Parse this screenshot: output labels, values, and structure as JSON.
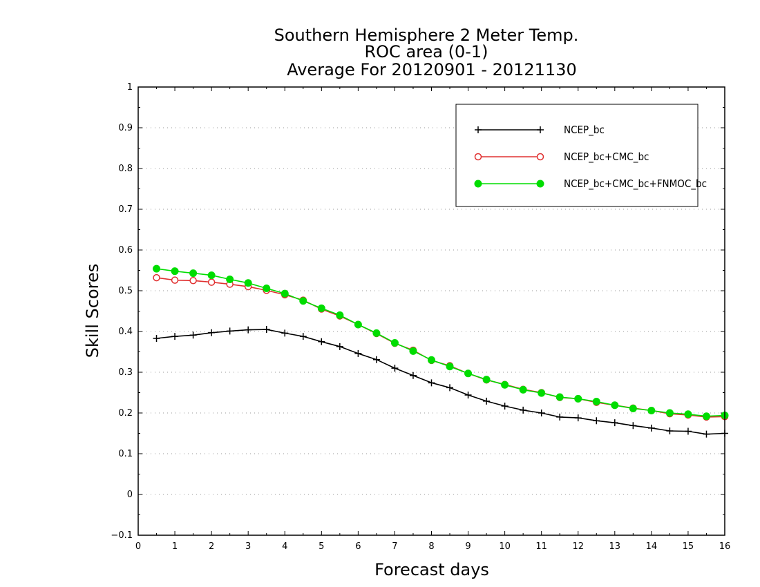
{
  "chart_data": {
    "type": "line",
    "title_lines": [
      "Southern Hemisphere 2 Meter Temp.",
      "ROC area (0-1)",
      "Average For 20120901 - 20121130"
    ],
    "xlabel": "Forecast days",
    "ylabel": "Skill Scores",
    "xlim": [
      0,
      16
    ],
    "ylim": [
      -0.1,
      1
    ],
    "xticks": [
      "0",
      "1",
      "2",
      "3",
      "4",
      "5",
      "6",
      "7",
      "8",
      "9",
      "10",
      "11",
      "12",
      "13",
      "14",
      "15",
      "16"
    ],
    "yticks": [
      "−0.1",
      "0",
      "0.1",
      "0.2",
      "0.3",
      "0.4",
      "0.5",
      "0.6",
      "0.7",
      "0.8",
      "0.9",
      "1"
    ],
    "grid": "horizontal dotted",
    "legend_position": "top-right",
    "x": [
      0.5,
      1,
      1.5,
      2,
      2.5,
      3,
      3.5,
      4,
      4.5,
      5,
      5.5,
      6,
      6.5,
      7,
      7.5,
      8,
      8.5,
      9,
      9.5,
      10,
      10.5,
      11,
      11.5,
      12,
      12.5,
      13,
      13.5,
      14,
      14.5,
      15,
      15.5,
      16
    ],
    "series": [
      {
        "name": "NCEP_bc",
        "color": "#000000",
        "marker": "plus",
        "values": [
          0.383,
          0.388,
          0.391,
          0.397,
          0.401,
          0.404,
          0.405,
          0.396,
          0.388,
          0.375,
          0.363,
          0.346,
          0.331,
          0.31,
          0.292,
          0.274,
          0.262,
          0.244,
          0.229,
          0.217,
          0.207,
          0.2,
          0.19,
          0.188,
          0.181,
          0.176,
          0.169,
          0.163,
          0.156,
          0.155,
          0.148,
          0.15
        ]
      },
      {
        "name": "NCEP_bc+CMC_bc",
        "color": "#e03030",
        "marker": "open-circle",
        "values": [
          0.532,
          0.526,
          0.525,
          0.521,
          0.516,
          0.51,
          0.501,
          0.49,
          0.477,
          0.455,
          0.438,
          0.417,
          0.395,
          0.371,
          0.354,
          0.329,
          0.316,
          0.297,
          0.281,
          0.27,
          0.258,
          0.25,
          0.238,
          0.235,
          0.226,
          0.219,
          0.212,
          0.206,
          0.198,
          0.195,
          0.19,
          0.191
        ]
      },
      {
        "name": "NCEP_bc+CMC_bc+FNMOC_bc",
        "color": "#00dd00",
        "marker": "filled-circle",
        "values": [
          0.554,
          0.548,
          0.543,
          0.538,
          0.528,
          0.519,
          0.506,
          0.493,
          0.475,
          0.457,
          0.44,
          0.417,
          0.396,
          0.372,
          0.352,
          0.33,
          0.314,
          0.297,
          0.282,
          0.269,
          0.257,
          0.249,
          0.239,
          0.235,
          0.228,
          0.219,
          0.211,
          0.206,
          0.2,
          0.197,
          0.192,
          0.194
        ]
      }
    ]
  }
}
